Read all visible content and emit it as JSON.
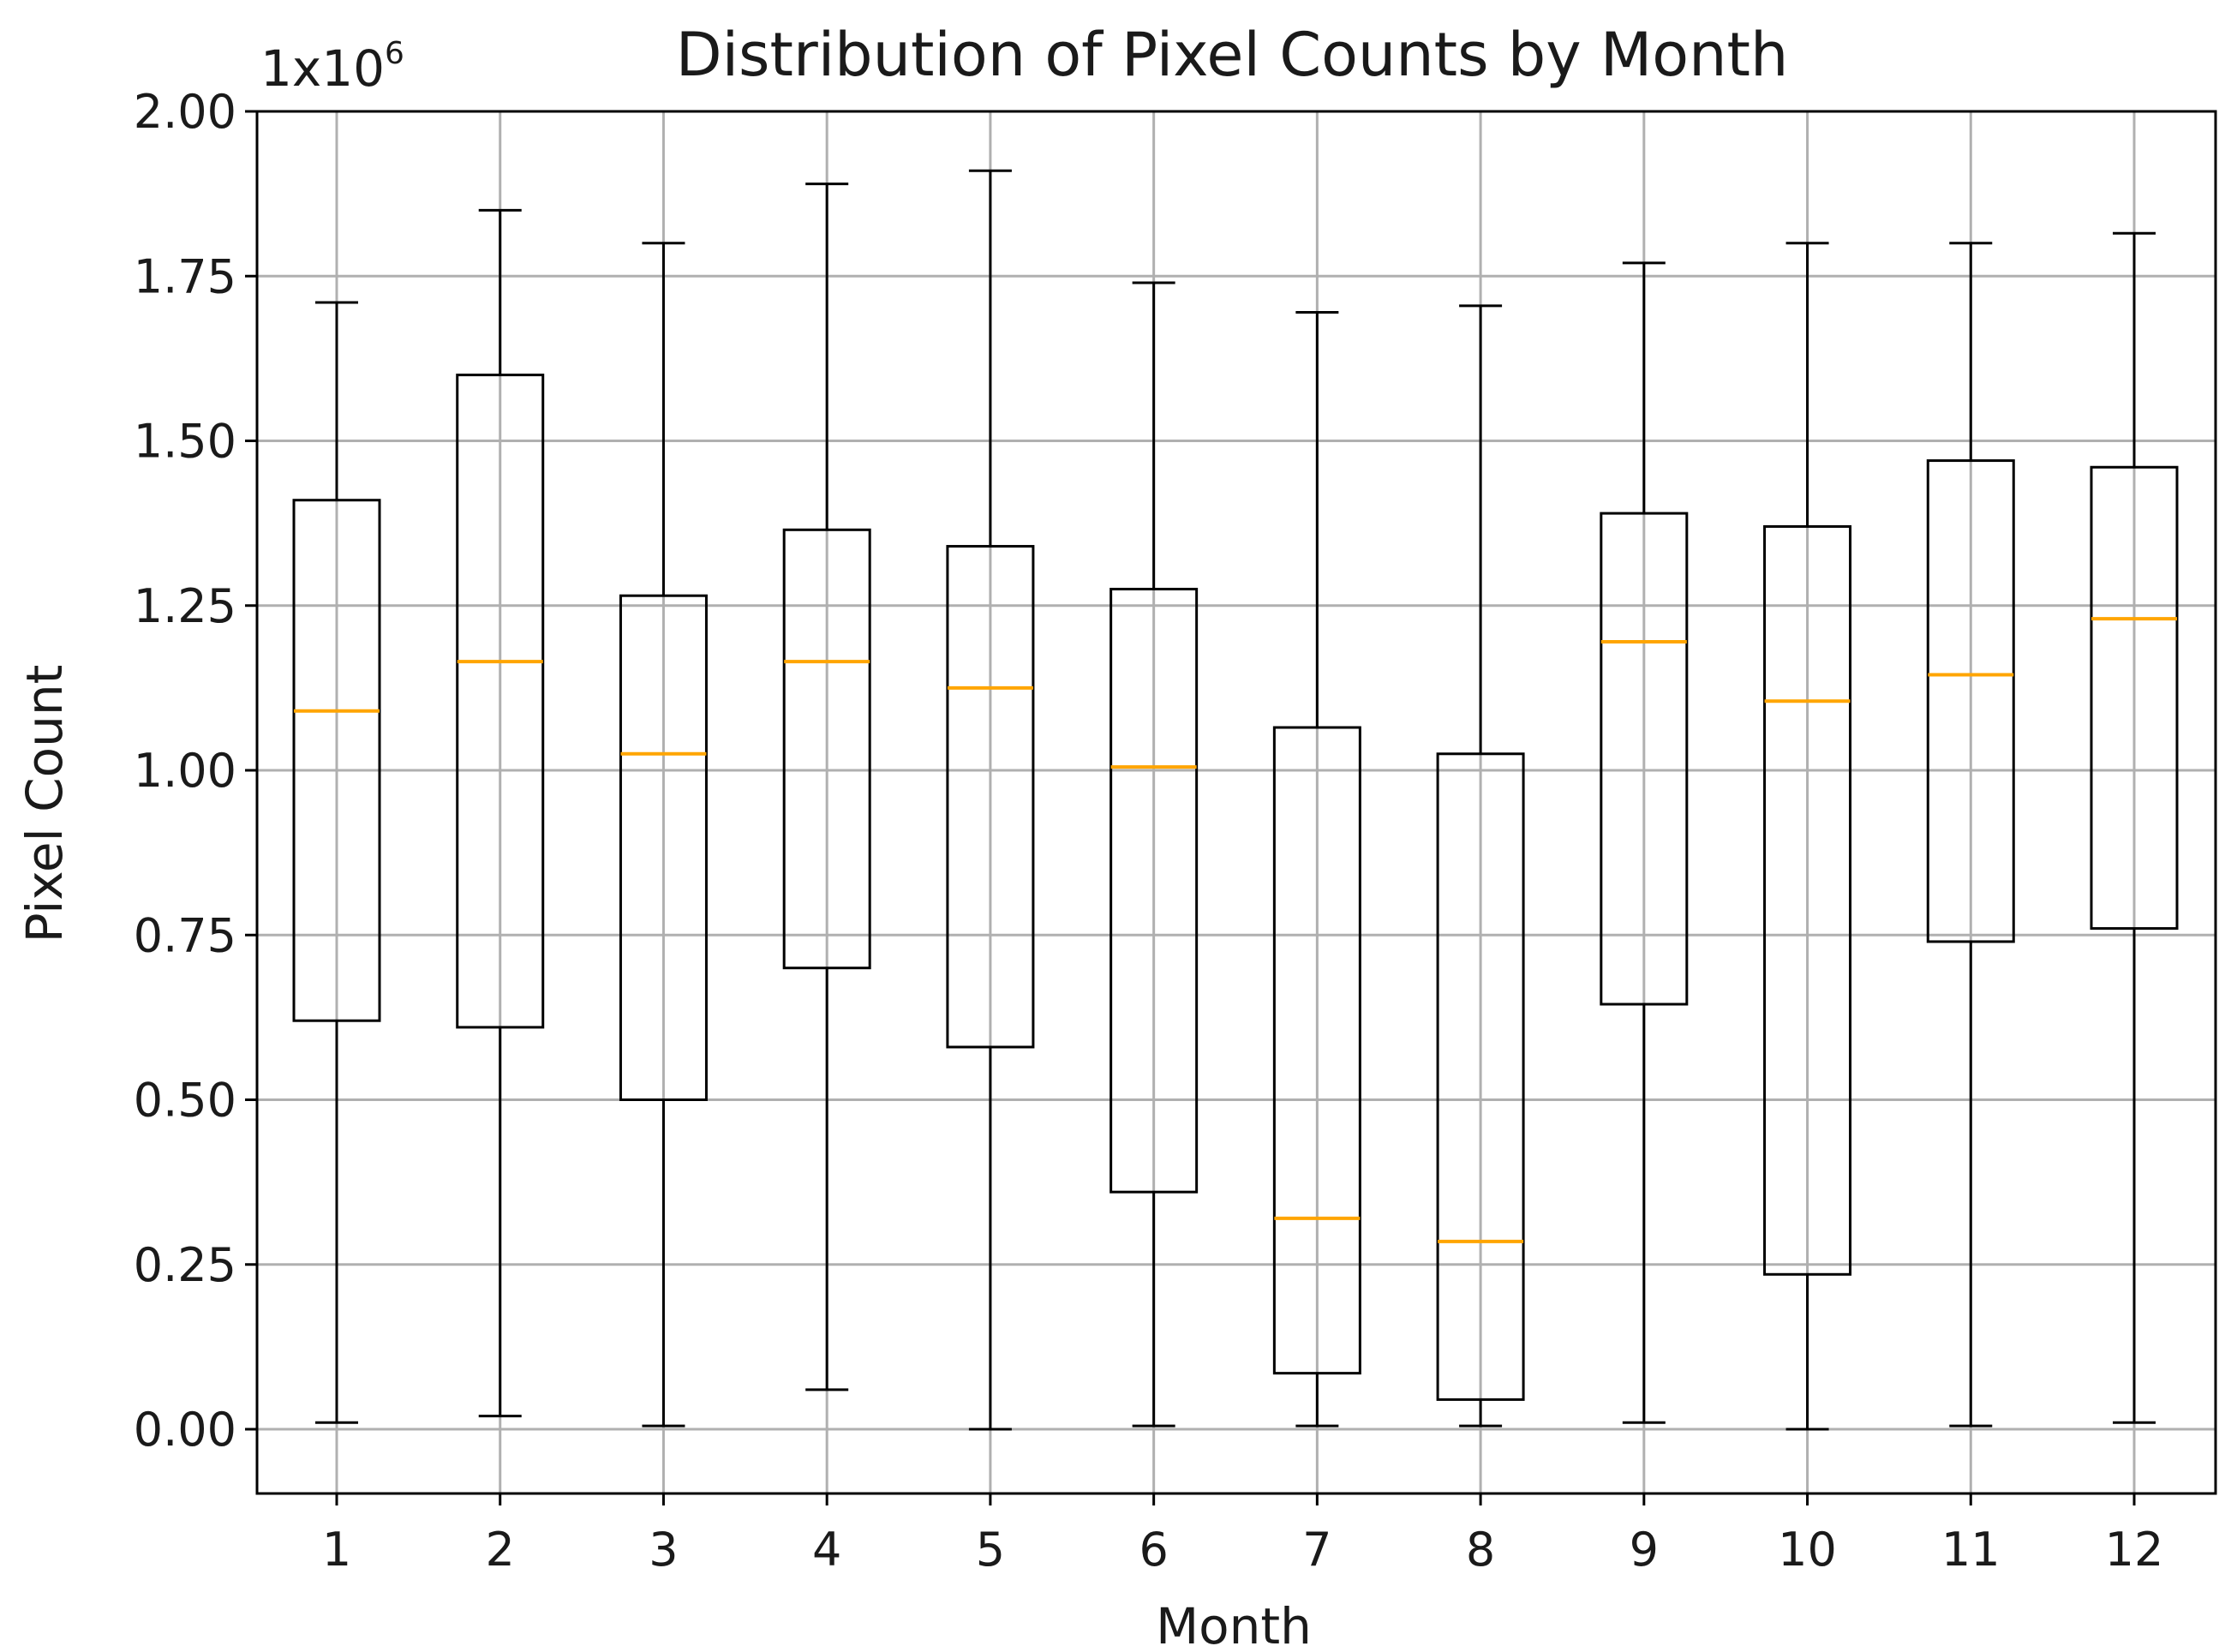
{
  "chart_data": {
    "type": "boxplot",
    "title": "Distribution of Pixel Counts by Month",
    "xlabel": "Month",
    "ylabel": "Pixel Count",
    "y_offset_text": {
      "base": "1x10",
      "exponent": "6"
    },
    "y_scale_multiplier": 1000000,
    "ylim": [
      -0.09,
      2.0
    ],
    "yticks": [
      0.0,
      0.25,
      0.5,
      0.75,
      1.0,
      1.25,
      1.5,
      1.75,
      2.0
    ],
    "ytick_labels": [
      "0.00",
      "0.25",
      "0.50",
      "0.75",
      "1.00",
      "1.25",
      "1.50",
      "1.75",
      "2.00"
    ],
    "categories": [
      "1",
      "2",
      "3",
      "4",
      "5",
      "6",
      "7",
      "8",
      "9",
      "10",
      "11",
      "12"
    ],
    "grid": true,
    "colors": {
      "box": "#000000",
      "median": "#ffa500",
      "grid": "#b0b0b0"
    },
    "boxes": [
      {
        "month": "1",
        "whisker_low": 0.01,
        "q1": 0.62,
        "median": 1.09,
        "q3": 1.41,
        "whisker_high": 1.71
      },
      {
        "month": "2",
        "whisker_low": 0.02,
        "q1": 0.61,
        "median": 1.165,
        "q3": 1.6,
        "whisker_high": 1.85
      },
      {
        "month": "3",
        "whisker_low": 0.005,
        "q1": 0.5,
        "median": 1.025,
        "q3": 1.265,
        "whisker_high": 1.8
      },
      {
        "month": "4",
        "whisker_low": 0.06,
        "q1": 0.7,
        "median": 1.165,
        "q3": 1.365,
        "whisker_high": 1.89
      },
      {
        "month": "5",
        "whisker_low": 0.0,
        "q1": 0.58,
        "median": 1.125,
        "q3": 1.34,
        "whisker_high": 1.91
      },
      {
        "month": "6",
        "whisker_low": 0.005,
        "q1": 0.36,
        "median": 1.005,
        "q3": 1.275,
        "whisker_high": 1.74
      },
      {
        "month": "7",
        "whisker_low": 0.005,
        "q1": 0.085,
        "median": 0.32,
        "q3": 1.065,
        "whisker_high": 1.695
      },
      {
        "month": "8",
        "whisker_low": 0.005,
        "q1": 0.045,
        "median": 0.285,
        "q3": 1.025,
        "whisker_high": 1.705
      },
      {
        "month": "9",
        "whisker_low": 0.01,
        "q1": 0.645,
        "median": 1.195,
        "q3": 1.39,
        "whisker_high": 1.77
      },
      {
        "month": "10",
        "whisker_low": 0.0,
        "q1": 0.235,
        "median": 1.105,
        "q3": 1.37,
        "whisker_high": 1.8
      },
      {
        "month": "11",
        "whisker_low": 0.005,
        "q1": 0.74,
        "median": 1.145,
        "q3": 1.47,
        "whisker_high": 1.8
      },
      {
        "month": "12",
        "whisker_low": 0.01,
        "q1": 0.76,
        "median": 1.23,
        "q3": 1.46,
        "whisker_high": 1.815
      }
    ]
  }
}
